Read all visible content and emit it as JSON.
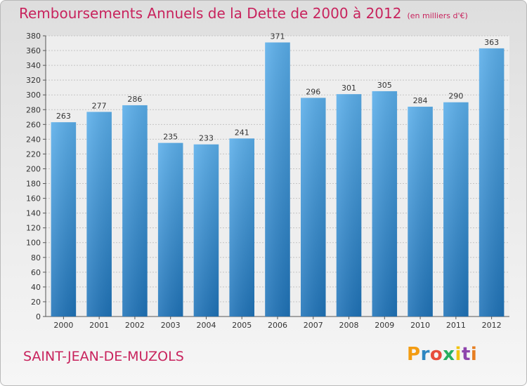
{
  "header": {
    "title": "Remboursements Annuels de la Dette de 2000 à 2012",
    "subtitle": "(en milliers d'€)"
  },
  "footer": {
    "commune": "SAINT-JEAN-DE-MUZOLS",
    "brand": "Proxiti",
    "brand_colors": [
      "#f39c12",
      "#2e86c1",
      "#e74c3c",
      "#27ae60",
      "#f1c40f",
      "#8e44ad",
      "#e67e22"
    ]
  },
  "colors": {
    "accent": "#c8235d",
    "bar_top": "#5aaeea",
    "bar_bottom": "#1f73b8"
  },
  "chart_data": {
    "type": "bar",
    "title": "Remboursements Annuels de la Dette de 2000 à 2012",
    "categories": [
      "2000",
      "2001",
      "2002",
      "2003",
      "2004",
      "2005",
      "2006",
      "2007",
      "2008",
      "2009",
      "2010",
      "2011",
      "2012"
    ],
    "values": [
      263,
      277,
      286,
      235,
      233,
      241,
      371,
      296,
      301,
      305,
      284,
      290,
      363
    ],
    "ylim": [
      0,
      380
    ],
    "yticks": [
      0,
      20,
      40,
      60,
      80,
      100,
      120,
      140,
      160,
      180,
      200,
      220,
      240,
      260,
      280,
      300,
      320,
      340,
      360,
      380
    ],
    "grid": true,
    "xlabel": "",
    "ylabel": ""
  }
}
